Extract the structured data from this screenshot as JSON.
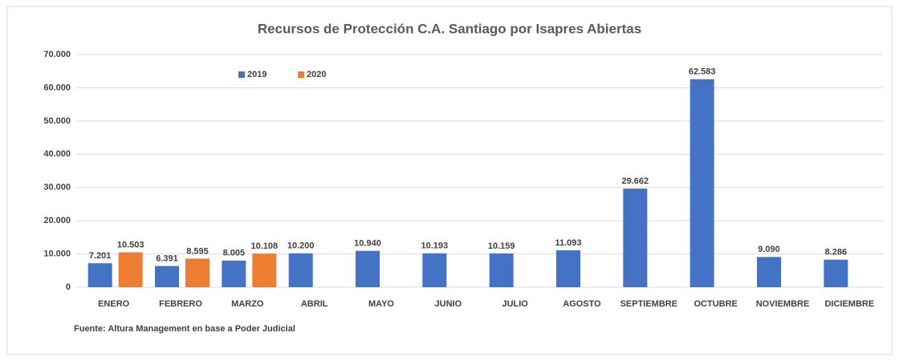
{
  "chart_data": {
    "type": "bar",
    "title": "Recursos de Protección C.A. Santiago por Isapres Abiertas",
    "source": "Fuente: Altura Management en base a Poder Judicial",
    "categories": [
      "ENERO",
      "FEBRERO",
      "MARZO",
      "ABRIL",
      "MAYO",
      "JUNIO",
      "JULIO",
      "AGOSTO",
      "SEPTIEMBRE",
      "OCTUBRE",
      "NOVIEMBRE",
      "DICIEMBRE"
    ],
    "series": [
      {
        "name": "2019",
        "color": "#4472c4",
        "values": [
          7201,
          6391,
          8005,
          10200,
          10940,
          10193,
          10159,
          11093,
          29662,
          62583,
          9090,
          8286
        ],
        "value_labels": [
          "7.201",
          "6.391",
          "8.005",
          "10.200",
          "10.940",
          "10.193",
          "10.159",
          "11.093",
          "29.662",
          "62.583",
          "9.090",
          "8.286"
        ]
      },
      {
        "name": "2020",
        "color": "#ed7d31",
        "values": [
          10503,
          8595,
          10108,
          null,
          null,
          null,
          null,
          null,
          null,
          null,
          null,
          null
        ],
        "value_labels": [
          "10.503",
          "8.595",
          "10.108",
          null,
          null,
          null,
          null,
          null,
          null,
          null,
          null,
          null
        ]
      }
    ],
    "ylim": [
      0,
      70000
    ],
    "yticks": [
      0,
      {
        "value": 10000,
        "label": "10.000"
      },
      {
        "value": 20000,
        "label": "20.000"
      },
      {
        "value": 30000,
        "label": "30.000"
      },
      {
        "value": 40000,
        "label": "40.000"
      },
      {
        "value": 50000,
        "label": "50.000"
      },
      {
        "value": 60000,
        "label": "60.000"
      },
      {
        "value": 70000,
        "label": "70.000"
      }
    ],
    "grid": true,
    "legend": "top-left"
  }
}
